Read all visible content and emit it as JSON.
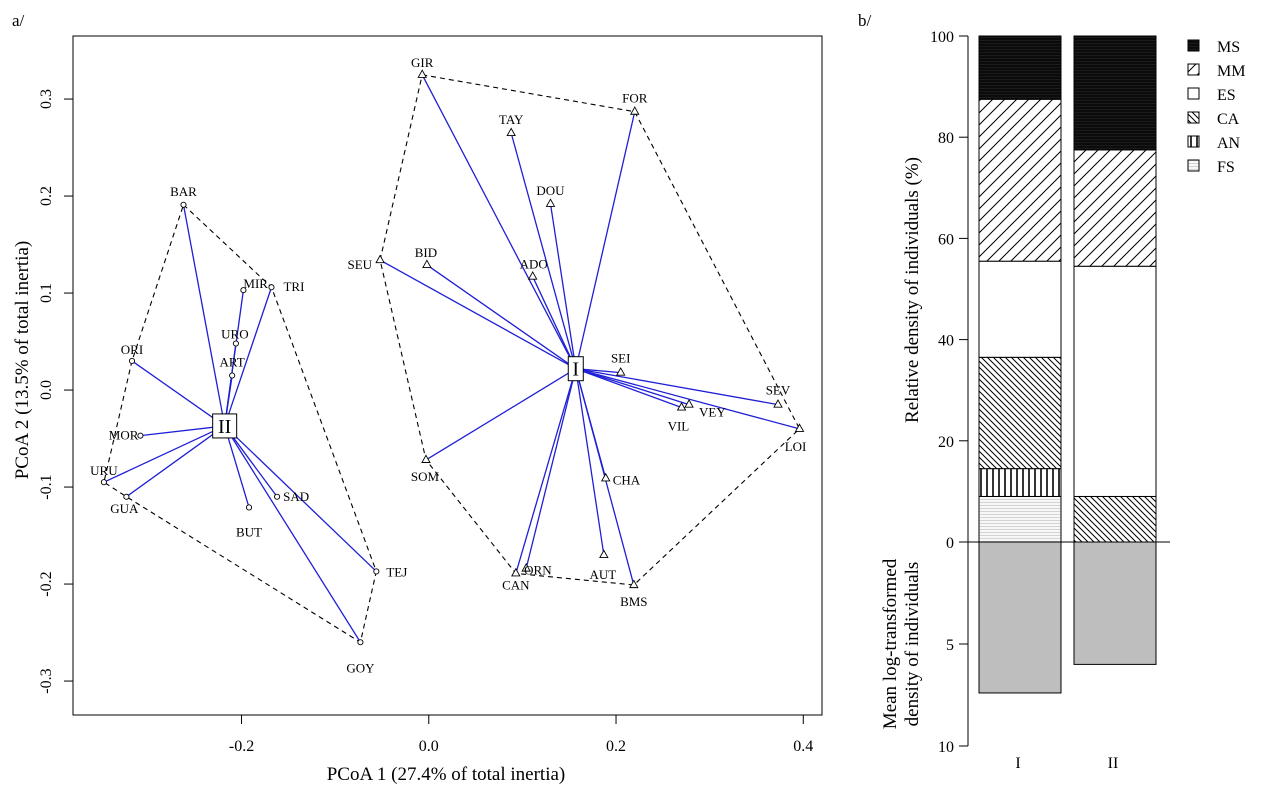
{
  "chart_data": [
    {
      "type": "scatter",
      "panel_label": "a/",
      "xlabel": "PCoA 1 (27.4% of total inertia)",
      "ylabel": "PCoA 2 (13.5% of total inertia)",
      "xlim": [
        -0.38,
        0.42
      ],
      "ylim": [
        -0.335,
        0.365
      ],
      "xticks": [
        -0.2,
        0.0,
        0.2,
        0.4
      ],
      "xtick_labels": [
        "-0.2",
        "0.0",
        "0.2",
        "0.4"
      ],
      "yticks": [
        -0.3,
        -0.2,
        -0.1,
        0.0,
        0.1,
        0.2,
        0.3
      ],
      "ytick_labels": [
        "-0.3",
        "-0.2",
        "-0.1",
        "0.0",
        "0.1",
        "0.2",
        "0.3"
      ],
      "grid": false,
      "series": [
        {
          "name": "I",
          "marker": "triangle",
          "centroid": {
            "label": "I",
            "x": 0.157,
            "y": 0.022
          },
          "hull": [
            "GIR",
            "FOR",
            "LOI",
            "BMS",
            "CAN",
            "SOM",
            "SEU"
          ],
          "points": [
            {
              "label": "GIR",
              "x": -0.007,
              "y": 0.325
            },
            {
              "label": "FOR",
              "x": 0.22,
              "y": 0.287
            },
            {
              "label": "TAY",
              "x": 0.088,
              "y": 0.265
            },
            {
              "label": "DOU",
              "x": 0.13,
              "y": 0.192
            },
            {
              "label": "BID",
              "x": -0.002,
              "y": 0.129
            },
            {
              "label": "SEU",
              "x": -0.052,
              "y": 0.134
            },
            {
              "label": "ADO",
              "x": 0.111,
              "y": 0.117
            },
            {
              "label": "SEI",
              "x": 0.205,
              "y": 0.018
            },
            {
              "label": "SEV",
              "x": 0.373,
              "y": -0.015
            },
            {
              "label": "VEY",
              "x": 0.278,
              "y": -0.015
            },
            {
              "label": "VIL",
              "x": 0.27,
              "y": -0.018
            },
            {
              "label": "LOI",
              "x": 0.396,
              "y": -0.04
            },
            {
              "label": "SOM",
              "x": -0.003,
              "y": -0.072
            },
            {
              "label": "CHA",
              "x": 0.189,
              "y": -0.091
            },
            {
              "label": "AUT",
              "x": 0.187,
              "y": -0.17
            },
            {
              "label": "ORN",
              "x": 0.104,
              "y": -0.184
            },
            {
              "label": "CAN",
              "x": 0.093,
              "y": -0.189
            },
            {
              "label": "BMS",
              "x": 0.219,
              "y": -0.201
            }
          ]
        },
        {
          "name": "II",
          "marker": "circle",
          "centroid": {
            "label": "II",
            "x": -0.218,
            "y": -0.037
          },
          "hull": [
            "BAR",
            "TRI",
            "TEJ",
            "GOY",
            "GUA",
            "URU",
            "ORI"
          ],
          "points": [
            {
              "label": "BAR",
              "x": -0.262,
              "y": 0.191
            },
            {
              "label": "TRI",
              "x": -0.168,
              "y": 0.106
            },
            {
              "label": "MIR",
              "x": -0.198,
              "y": 0.103
            },
            {
              "label": "URO",
              "x": -0.206,
              "y": 0.048
            },
            {
              "label": "ART",
              "x": -0.21,
              "y": 0.015
            },
            {
              "label": "ORI",
              "x": -0.317,
              "y": 0.03
            },
            {
              "label": "MOR",
              "x": -0.308,
              "y": -0.047
            },
            {
              "label": "URU",
              "x": -0.347,
              "y": -0.095
            },
            {
              "label": "GUA",
              "x": -0.323,
              "y": -0.11
            },
            {
              "label": "SAD",
              "x": -0.162,
              "y": -0.11
            },
            {
              "label": "BUT",
              "x": -0.192,
              "y": -0.121
            },
            {
              "label": "TEJ",
              "x": -0.056,
              "y": -0.187
            },
            {
              "label": "GOY",
              "x": -0.073,
              "y": -0.26
            }
          ]
        }
      ]
    },
    {
      "type": "bar",
      "stacked": true,
      "panel_label": "b/",
      "categories": [
        "I",
        "II"
      ],
      "upper": {
        "ylabel": "Relative density of individuals (%)",
        "ylim": [
          0,
          100
        ],
        "yticks": [
          0,
          20,
          40,
          60,
          80,
          100
        ],
        "ytick_labels": [
          "0",
          "20",
          "40",
          "60",
          "80",
          "100"
        ],
        "series": [
          {
            "name": "FS",
            "values": [
              9,
              0
            ],
            "fill": "hlines-light"
          },
          {
            "name": "AN",
            "values": [
              5.5,
              0
            ],
            "fill": "vlines"
          },
          {
            "name": "CA",
            "values": [
              22,
              9
            ],
            "fill": "back-diagonal"
          },
          {
            "name": "ES",
            "values": [
              19,
              45.5
            ],
            "fill": "white"
          },
          {
            "name": "MM",
            "values": [
              32,
              23
            ],
            "fill": "diagonal"
          },
          {
            "name": "MS",
            "values": [
              12.5,
              22.5
            ],
            "fill": "solid-dark"
          }
        ]
      },
      "lower": {
        "ylabel_lines": [
          "Mean log-transformed",
          "density of individuals"
        ],
        "ylim": [
          0,
          10
        ],
        "yticks": [
          0,
          5,
          10
        ],
        "ytick_labels": [
          "0",
          "5",
          "10"
        ],
        "values": [
          7.4,
          6.0
        ],
        "fill": "#bebebe"
      },
      "legend": {
        "position": "top-right",
        "entries": [
          {
            "name": "MS",
            "fill": "solid-dark"
          },
          {
            "name": "MM",
            "fill": "diagonal"
          },
          {
            "name": "ES",
            "fill": "white"
          },
          {
            "name": "CA",
            "fill": "back-diagonal"
          },
          {
            "name": "AN",
            "fill": "vlines"
          },
          {
            "name": "FS",
            "fill": "hlines-light"
          }
        ]
      }
    }
  ],
  "colors": {
    "spider_line": "#1f1fd6",
    "hull_line": "#000000",
    "bar_dark": "#0b0b0b",
    "bar_grey": "#bebebe"
  }
}
